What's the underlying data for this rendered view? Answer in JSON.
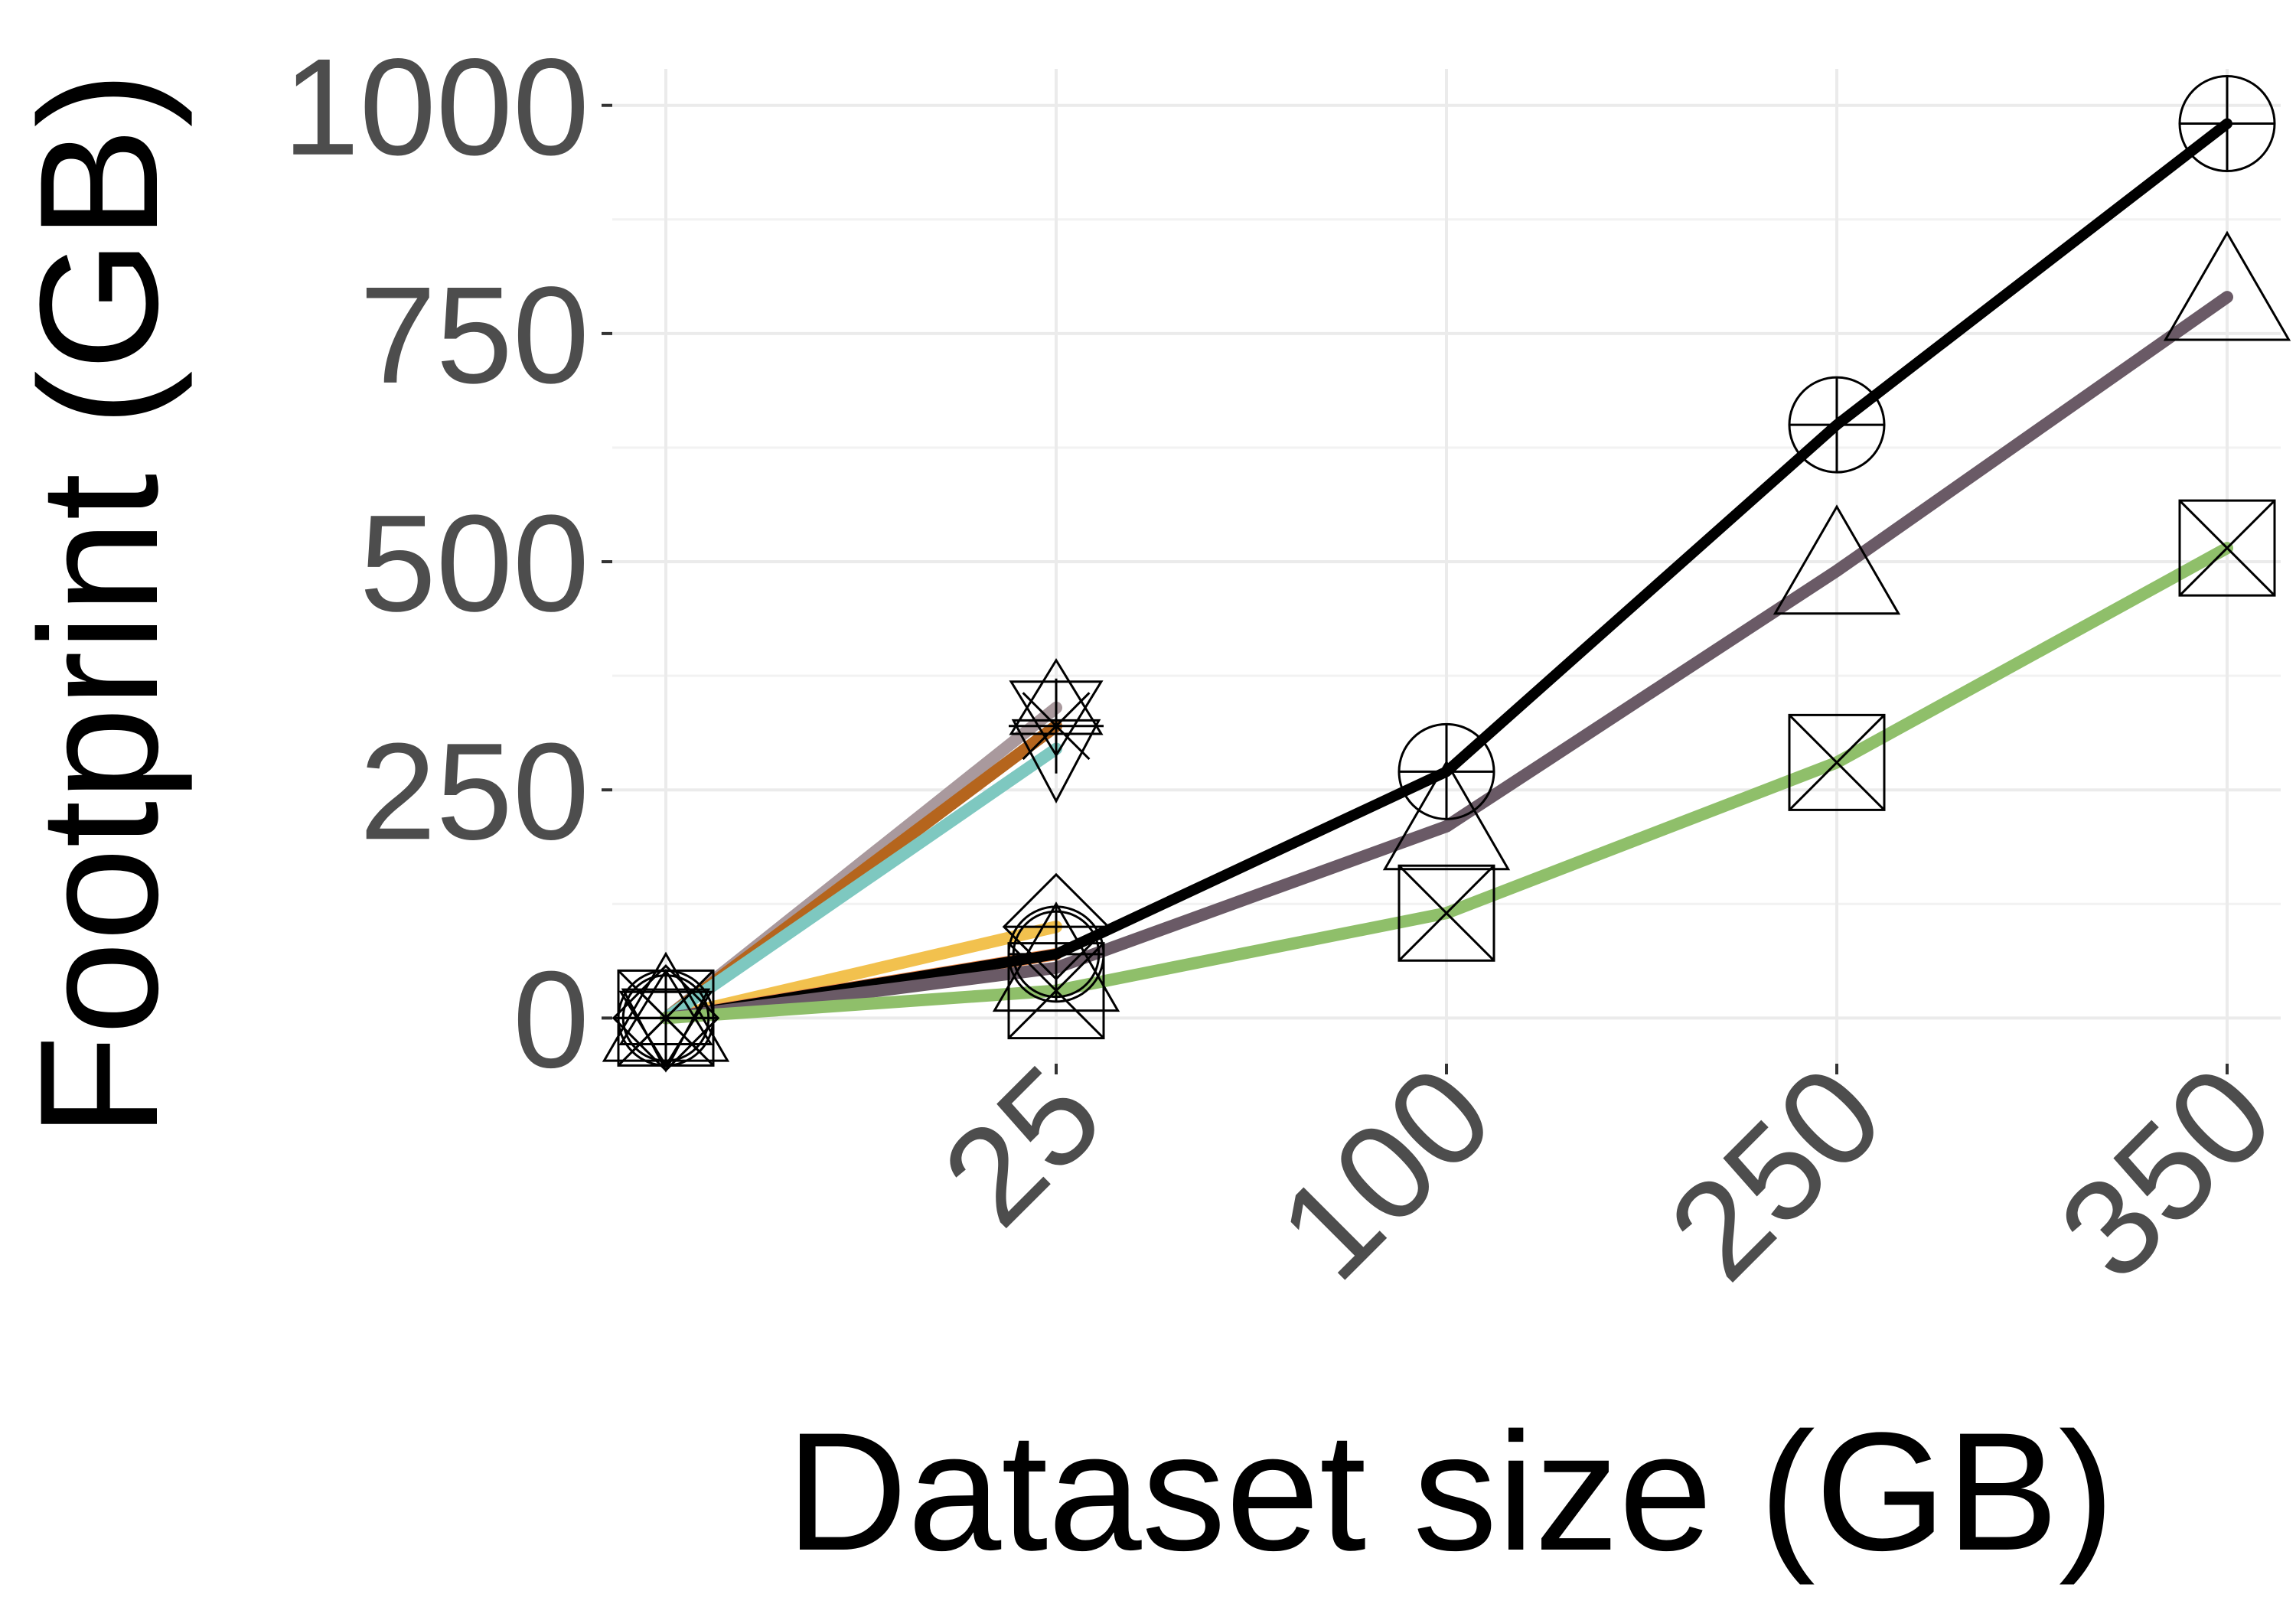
{
  "chart_data": {
    "type": "line",
    "xlabel": "Dataset size (GB)",
    "ylabel": "Footprint (GB)",
    "x_ticks": [
      "25",
      "100",
      "250",
      "350"
    ],
    "y_ticks": [
      "0",
      "250",
      "500",
      "750",
      "1000"
    ],
    "ylim": [
      -50,
      1040
    ],
    "grid": true,
    "legend": "none",
    "x_axis_note": "categorical positions: 0, 25, 100, 250, 350 (0 unlabeled)",
    "series": [
      {
        "color": "#000000",
        "marker": "circle-plus",
        "x": [
          0,
          25,
          100,
          250,
          350
        ],
        "y": [
          0,
          70,
          270,
          650,
          980
        ]
      },
      {
        "color": "#6a5a66",
        "marker": "triangle",
        "x": [
          0,
          25,
          100,
          250,
          350
        ],
        "y": [
          0,
          55,
          210,
          490,
          790
        ]
      },
      {
        "color": "#8fbf6a",
        "marker": "square-x",
        "x": [
          0,
          25,
          100,
          250,
          350
        ],
        "y": [
          0,
          30,
          115,
          280,
          515
        ]
      },
      {
        "color": "#f2c14e",
        "marker": "diamond",
        "x": [
          0,
          25
        ],
        "y": [
          0,
          100
        ]
      },
      {
        "color": "#f08a4b",
        "marker": "circle",
        "x": [
          0,
          25
        ],
        "y": [
          0,
          70
        ]
      },
      {
        "color": "#a9999d",
        "marker": "star",
        "x": [
          0,
          25
        ],
        "y": [
          0,
          340
        ]
      },
      {
        "color": "#b5651d",
        "marker": "asterisk",
        "x": [
          0,
          25
        ],
        "y": [
          0,
          320
        ]
      },
      {
        "color": "#7ec8c0",
        "marker": "triangle-down",
        "x": [
          0,
          25
        ],
        "y": [
          0,
          295
        ]
      }
    ]
  }
}
